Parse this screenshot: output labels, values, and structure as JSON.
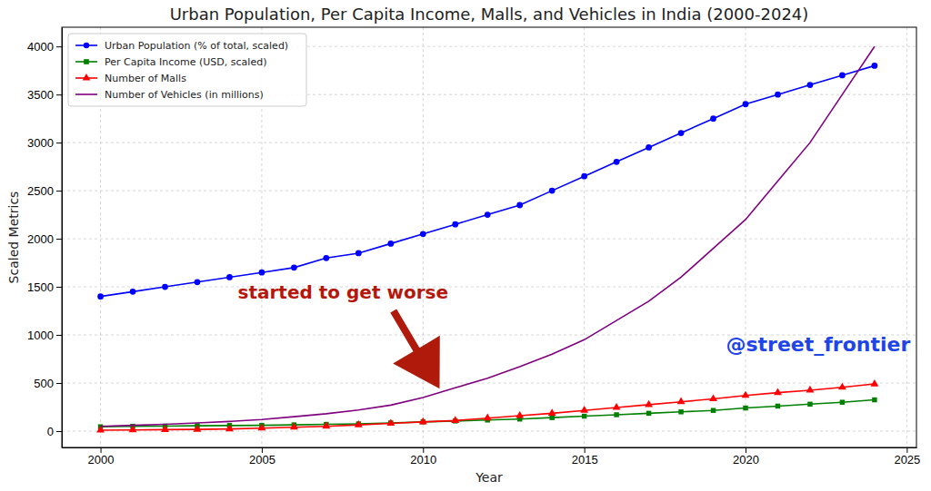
{
  "chart_data": {
    "type": "line",
    "title": "Urban Population, Per Capita Income, Malls, and Vehicles in India (2000-2024)",
    "x_label": "Year",
    "y_label": "Scaled Metrics",
    "x": [
      2000,
      2001,
      2002,
      2003,
      2004,
      2005,
      2006,
      2007,
      2008,
      2009,
      2010,
      2011,
      2012,
      2013,
      2014,
      2015,
      2016,
      2017,
      2018,
      2019,
      2020,
      2021,
      2022,
      2023,
      2024
    ],
    "series": [
      {
        "name": "Urban Population (% of total, scaled)",
        "color": "#0000ff",
        "marker": "circle",
        "values": [
          1400,
          1450,
          1500,
          1550,
          1600,
          1650,
          1700,
          1800,
          1850,
          1950,
          2050,
          2150,
          2250,
          2350,
          2500,
          2650,
          2800,
          2950,
          3100,
          3250,
          3400,
          3500,
          3600,
          3700,
          3800
        ]
      },
      {
        "name": "Per Capita Income (USD, scaled)",
        "color": "#008000",
        "marker": "square",
        "values": [
          45,
          50,
          52,
          55,
          58,
          60,
          65,
          70,
          75,
          85,
          95,
          105,
          115,
          125,
          140,
          155,
          170,
          185,
          200,
          215,
          240,
          260,
          280,
          300,
          325
        ]
      },
      {
        "name": "Number of Malls",
        "color": "#ff0000",
        "marker": "triangle",
        "values": [
          10,
          12,
          15,
          18,
          22,
          30,
          40,
          50,
          65,
          80,
          95,
          110,
          135,
          160,
          185,
          215,
          245,
          275,
          305,
          335,
          370,
          400,
          425,
          455,
          490
        ]
      },
      {
        "name": "Number of Vehicles (in millions)",
        "color": "#800080",
        "marker": "none",
        "values": [
          50,
          60,
          70,
          85,
          100,
          120,
          150,
          180,
          220,
          270,
          350,
          450,
          550,
          670,
          800,
          950,
          1150,
          1350,
          1600,
          1900,
          2200,
          2600,
          3000,
          3500,
          4000
        ]
      }
    ],
    "xlim": [
      1998.8,
      2025.3
    ],
    "xticks": [
      2000,
      2005,
      2010,
      2015,
      2020,
      2025
    ],
    "ylim": [
      -170,
      4200
    ],
    "yticks": [
      0,
      500,
      1000,
      1500,
      2000,
      2500,
      3000,
      3500,
      4000
    ],
    "grid": true,
    "legend": "upper left",
    "annotations": [
      {
        "text": "started to get worse"
      },
      {
        "text": "@street_frontier"
      }
    ]
  }
}
